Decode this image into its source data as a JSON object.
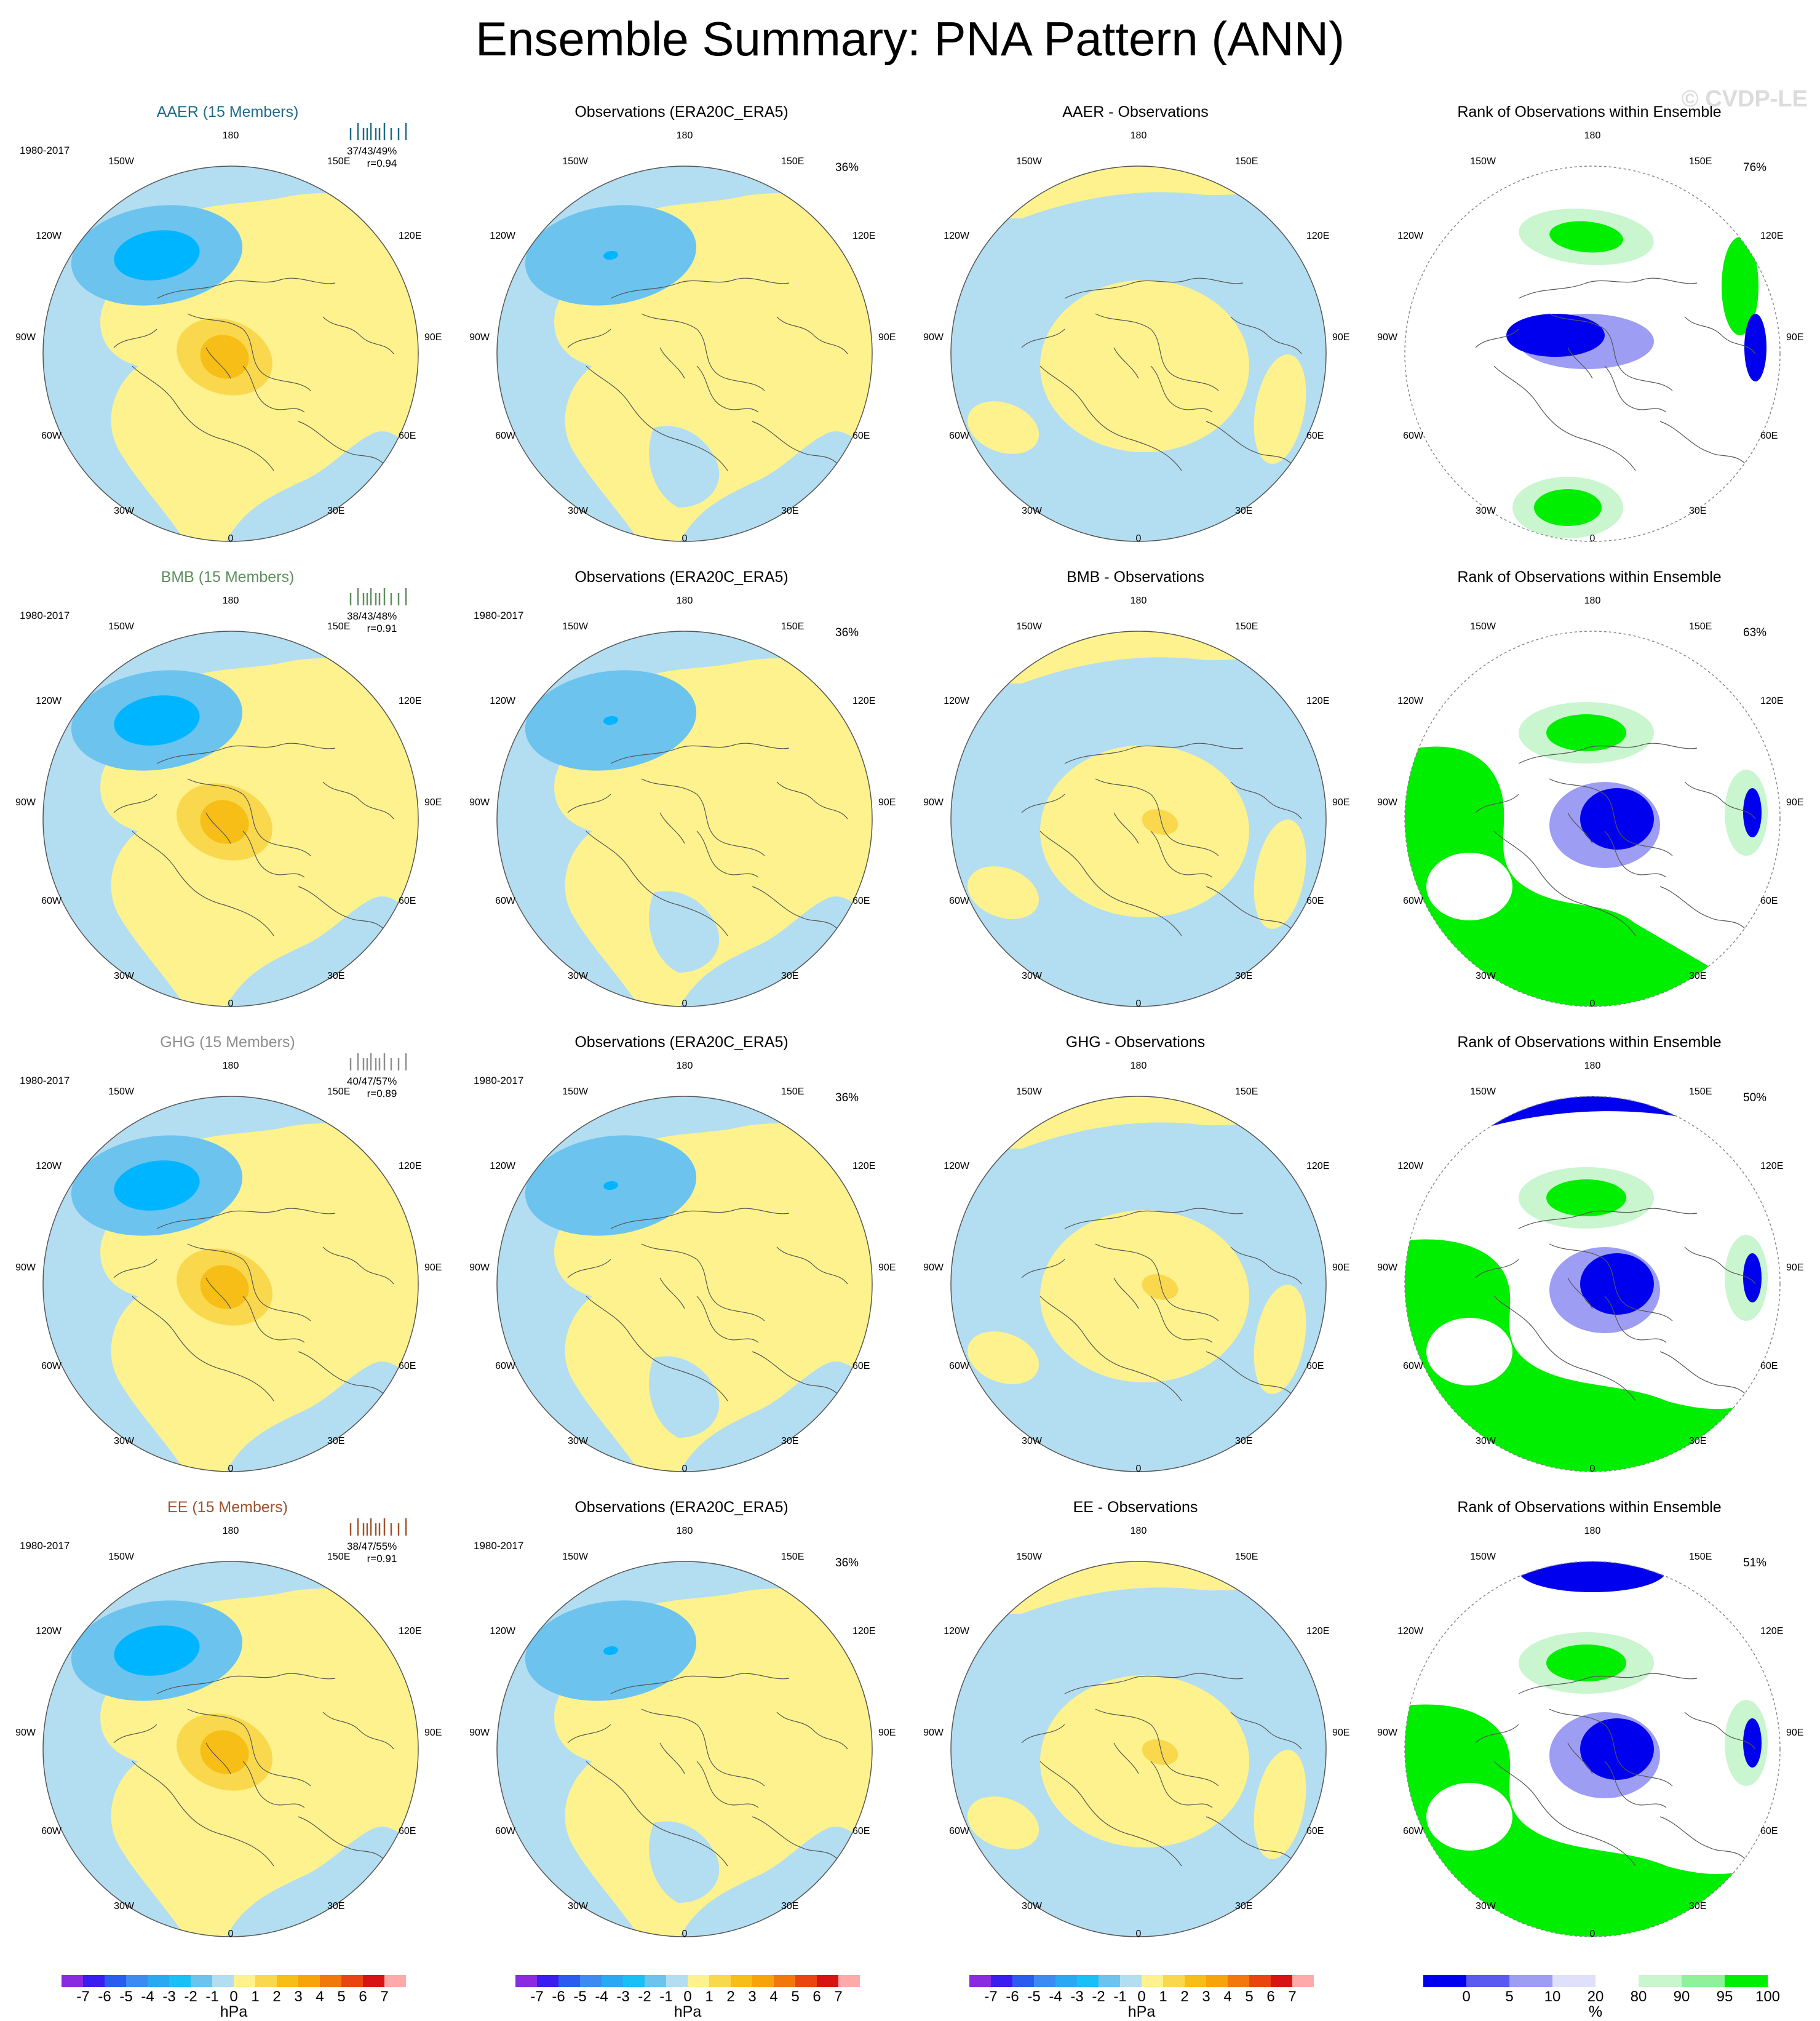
{
  "title": "Ensemble Summary: PNA Pattern (ANN)",
  "watermark": "© CVDP-LE",
  "lon_labels": {
    "top": "180",
    "bottom": "0",
    "ul": "150W",
    "ur": "150E",
    "l1": "120W",
    "r1": "120E",
    "l2": "90W",
    "r2": "90E",
    "l3": "60W",
    "r3": "60E",
    "bl": "30W",
    "br": "30E"
  },
  "colors": {
    "blue_light": "#b3ddf1",
    "blue_mid": "#6cc3ee",
    "blue_dark": "#00b5ff",
    "yellow_light": "#fdf28d",
    "yellow_mid": "#fad84e",
    "yellow_dark": "#f6be16",
    "rank_green": "#00ee00",
    "rank_green_light": "#c9f5cf",
    "rank_blue": "#0000ee",
    "rank_blue_mid": "#9d9df4",
    "rank_blue_light": "#e0e0fa",
    "hist_colors": [
      "#1f6b86",
      "#5e8f5e",
      "#8f8f8f",
      "#a0522d"
    ]
  },
  "rows": [
    {
      "ensemble": {
        "title": "AAER (15 Members)",
        "color": "#1f6b86",
        "years": "1980-2017",
        "pcts": "37/43/49%",
        "r": "r=0.94"
      },
      "obs": {
        "title": "Observations (ERA20C_ERA5)",
        "years": "",
        "pct": "36%"
      },
      "diff": {
        "title": "AAER - Observations"
      },
      "rank": {
        "title": "Rank of Observations within Ensemble",
        "pct": "76%"
      }
    },
    {
      "ensemble": {
        "title": "BMB (15 Members)",
        "color": "#5e8f5e",
        "years": "1980-2017",
        "pcts": "38/43/48%",
        "r": "r=0.91"
      },
      "obs": {
        "title": "Observations (ERA20C_ERA5)",
        "years": "1980-2017",
        "pct": "36%"
      },
      "diff": {
        "title": "BMB - Observations"
      },
      "rank": {
        "title": "Rank of Observations within Ensemble",
        "pct": "63%"
      }
    },
    {
      "ensemble": {
        "title": "GHG (15 Members)",
        "color": "#8f8f8f",
        "years": "1980-2017",
        "pcts": "40/47/57%",
        "r": "r=0.89"
      },
      "obs": {
        "title": "Observations (ERA20C_ERA5)",
        "years": "1980-2017",
        "pct": "36%"
      },
      "diff": {
        "title": "GHG - Observations"
      },
      "rank": {
        "title": "Rank of Observations within Ensemble",
        "pct": "50%"
      }
    },
    {
      "ensemble": {
        "title": "EE (15 Members)",
        "color": "#a0522d",
        "years": "1980-2017",
        "pcts": "38/47/55%",
        "r": "r=0.91"
      },
      "obs": {
        "title": "Observations (ERA20C_ERA5)",
        "years": "1980-2017",
        "pct": "36%"
      },
      "diff": {
        "title": "EE - Observations"
      },
      "rank": {
        "title": "Rank of Observations within Ensemble",
        "pct": "51%"
      }
    }
  ],
  "colorbar_hpa": {
    "labels": [
      "-7",
      "-6",
      "-5",
      "-4",
      "-3",
      "-2",
      "-1",
      "0",
      "1",
      "2",
      "3",
      "4",
      "5",
      "6",
      "7"
    ],
    "colors": [
      "#8a2be2",
      "#3a1df0",
      "#2b5cf0",
      "#3d8bf2",
      "#2aa9f3",
      "#18c0f5",
      "#6cc3ee",
      "#b3ddf1",
      "#fdf28d",
      "#fad84e",
      "#f6be16",
      "#f7a30a",
      "#f2780c",
      "#ea4510",
      "#d81313",
      "#ffaaaa"
    ],
    "unit": "hPa"
  },
  "colorbar_rank": {
    "labels": [
      "0",
      "5",
      "10",
      "20",
      "80",
      "90",
      "95",
      "100"
    ],
    "colors": [
      "#0000ee",
      "#5a5af2",
      "#9d9df4",
      "#e0e0fa",
      "#ffffff",
      "#c9f5cf",
      "#8ff29a",
      "#00ee00"
    ],
    "unit": "%"
  }
}
